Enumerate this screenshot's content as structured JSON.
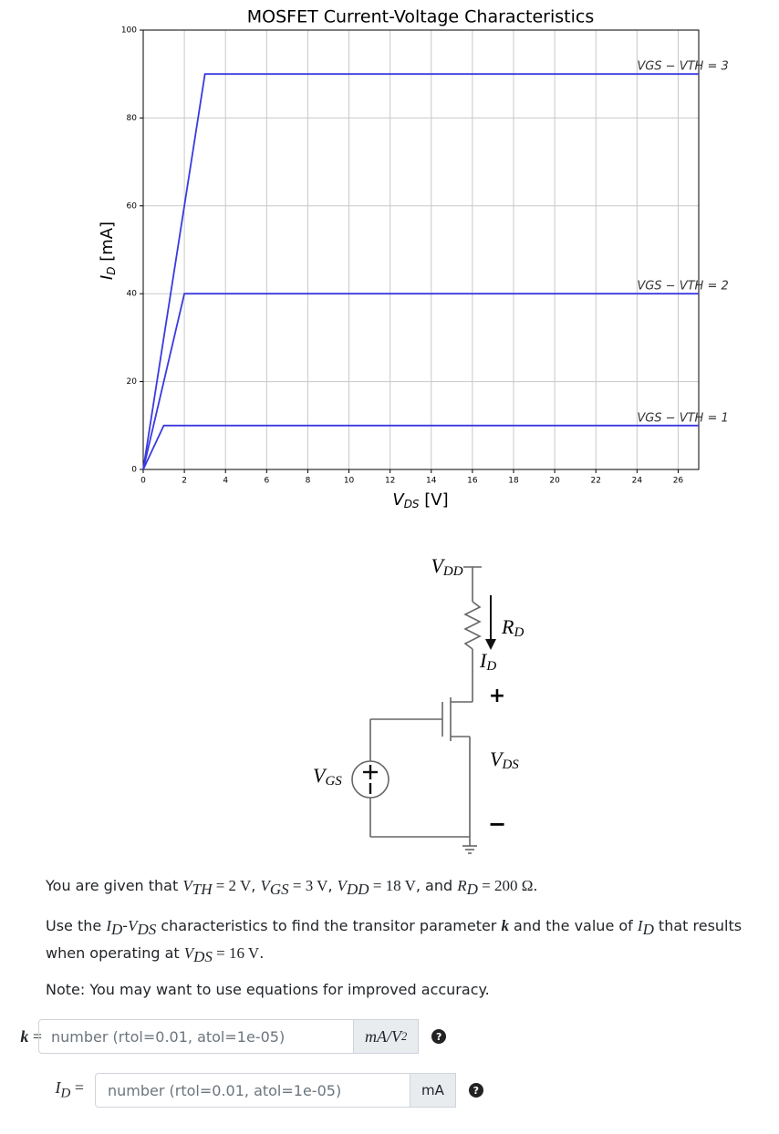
{
  "chart_data": {
    "type": "line",
    "title": "MOSFET Current-Voltage Characteristics",
    "xlabel": [
      "V",
      "DS",
      " [V]"
    ],
    "ylabel": [
      "I",
      "D",
      " [mA]"
    ],
    "xlim": [
      0,
      27
    ],
    "ylim": [
      0,
      100
    ],
    "xticks": [
      0,
      2,
      4,
      6,
      8,
      10,
      12,
      14,
      16,
      18,
      20,
      22,
      24,
      26
    ],
    "yticks": [
      0,
      20,
      40,
      60,
      80,
      100
    ],
    "grid": true,
    "series": [
      {
        "name": "VGS − VTH = 1",
        "color": "#3a3ae0",
        "x": [
          0,
          1,
          27
        ],
        "values": [
          0,
          10,
          10
        ]
      },
      {
        "name": "VGS − VTH = 2",
        "color": "#3a3ae0",
        "x": [
          0,
          2,
          27
        ],
        "values": [
          0,
          40,
          40
        ]
      },
      {
        "name": "VGS − VTH = 3",
        "color": "#3a3ae0",
        "x": [
          0,
          3,
          27
        ],
        "values": [
          0,
          90,
          90
        ]
      }
    ]
  },
  "circuit": {
    "vdd": [
      "V",
      "DD"
    ],
    "rd": [
      "R",
      "D"
    ],
    "id": [
      "I",
      "D"
    ],
    "plus": "+",
    "vds": [
      "V",
      "DS"
    ],
    "minus": "−",
    "vgs": [
      "V",
      "GS"
    ]
  },
  "question": {
    "p1": [
      "You are given that ",
      "V",
      "TH",
      " = 2 V",
      ", ",
      "V",
      "GS",
      " = 3 V",
      ", ",
      "V",
      "DD",
      " = 18 V",
      ", and ",
      "R",
      "D",
      " = 200 Ω",
      "."
    ],
    "p2": [
      "Use the ",
      "I",
      "D",
      "-",
      "V",
      "DS",
      " characteristics to find the transitor parameter ",
      "k",
      " and the value of ",
      "I",
      "D",
      " that results when operating at ",
      "V",
      "DS",
      " = 16 V",
      "."
    ],
    "p3": "Note: You may want to use equations for improved accuracy.",
    "inputs": [
      {
        "label": [
          "k",
          " ="
        ],
        "placeholder": "number (rtol=0.01, atol=1e-05)",
        "unit": [
          "mA/V",
          "2"
        ],
        "help": "?"
      },
      {
        "label": [
          "I",
          "D",
          " ="
        ],
        "placeholder": "number (rtol=0.01, atol=1e-05)",
        "unit": [
          "mA"
        ],
        "help": "?"
      }
    ]
  }
}
